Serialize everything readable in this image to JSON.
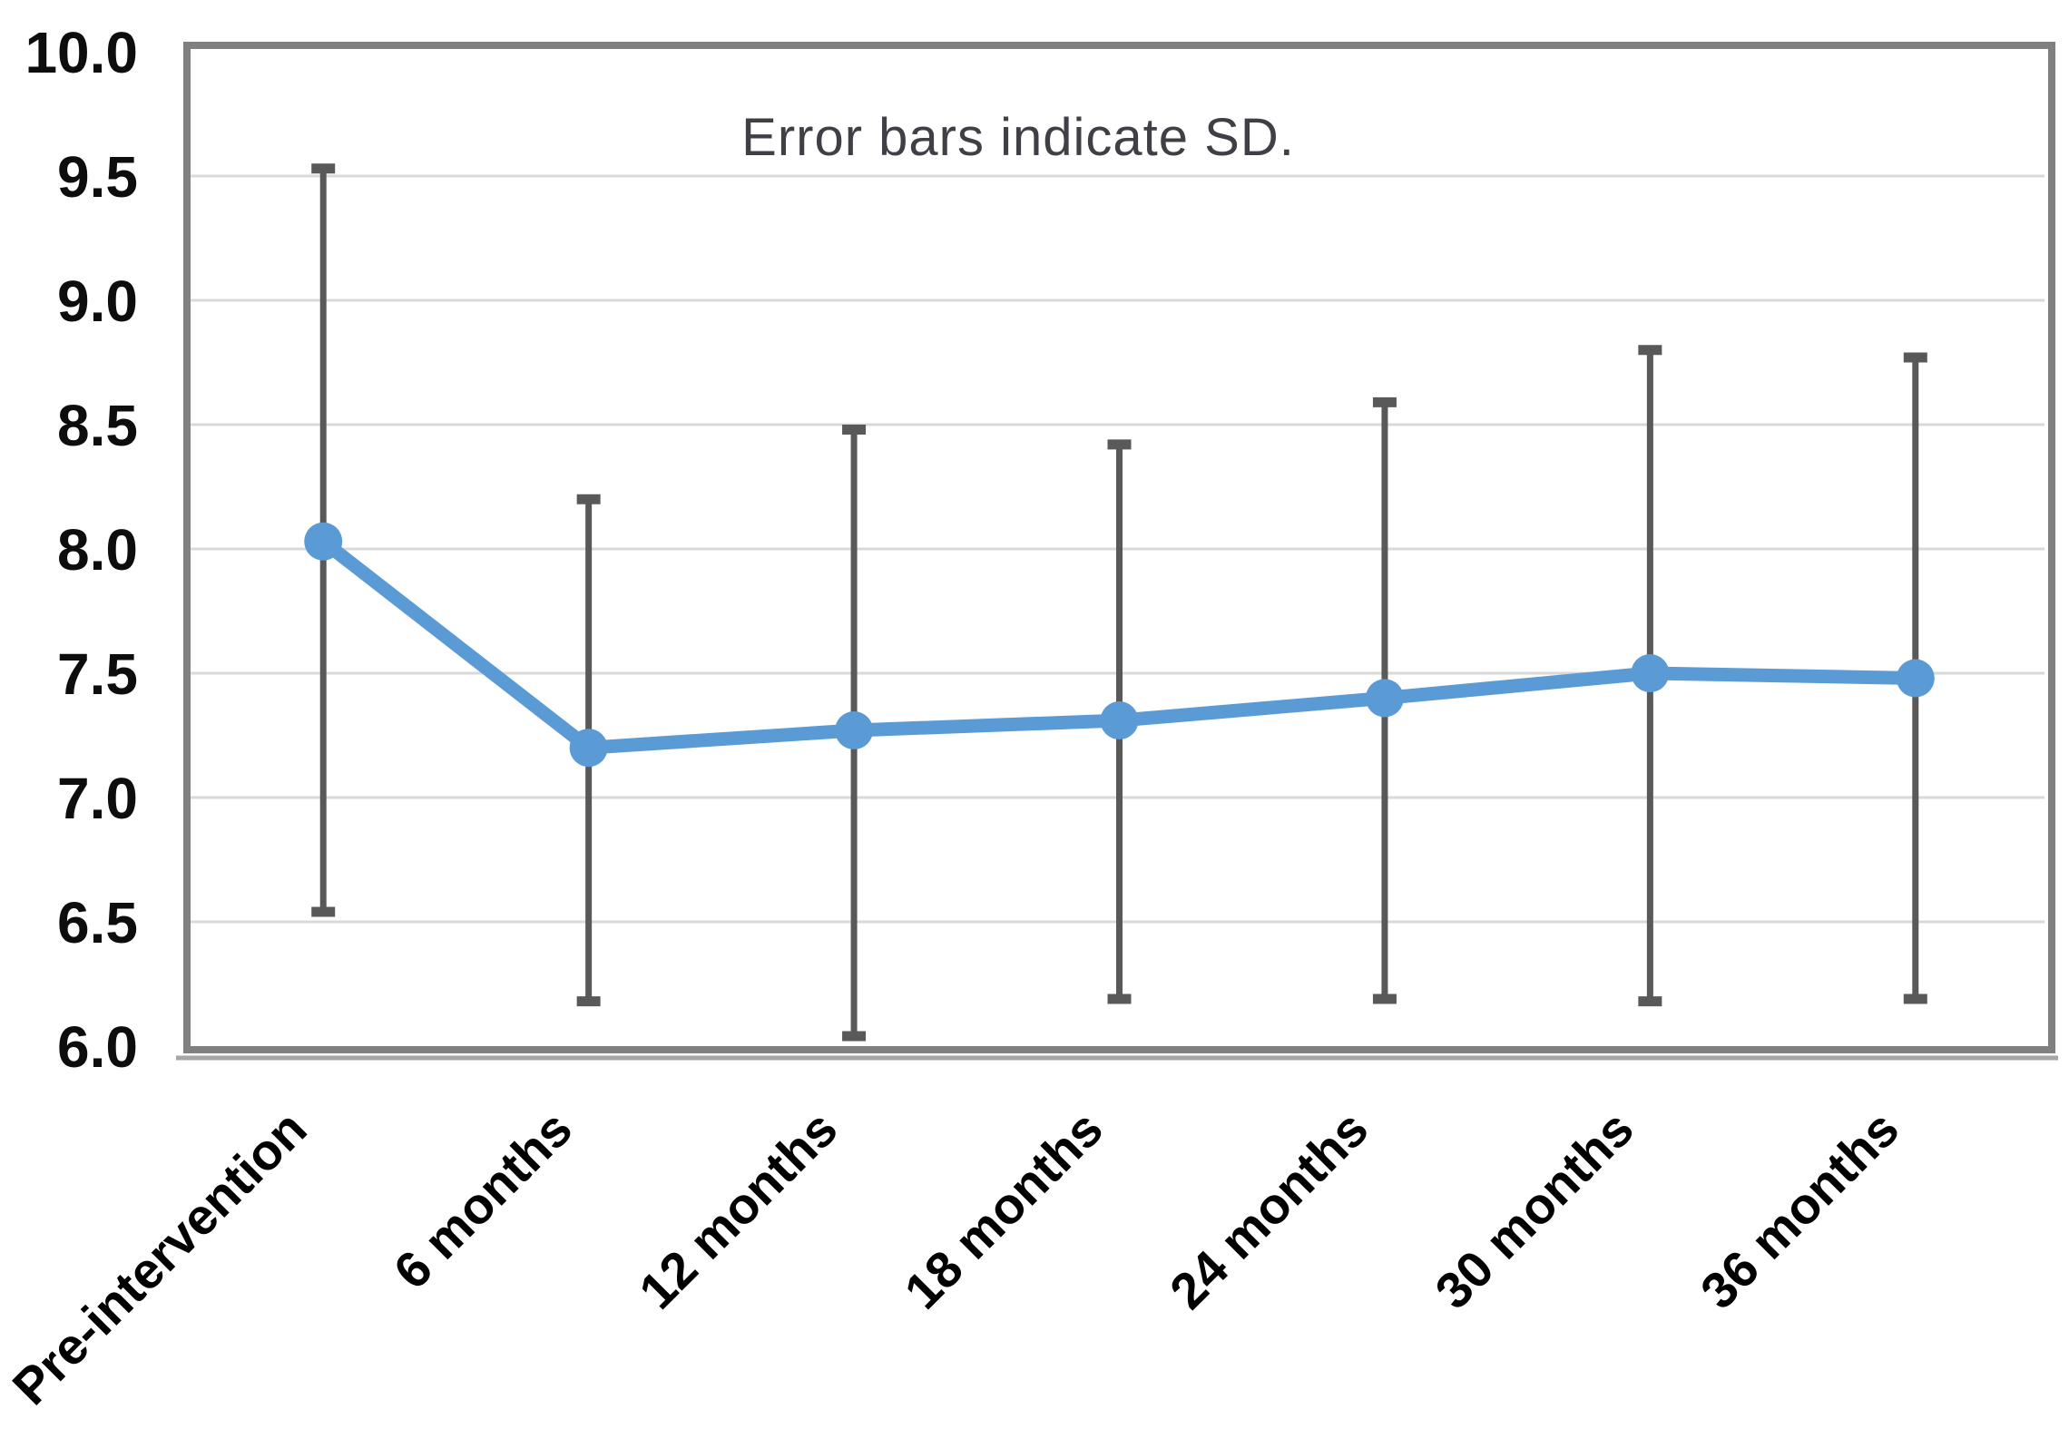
{
  "chart_data": {
    "type": "line",
    "categories": [
      "Pre-intervention",
      "6 months",
      "12 months",
      "18 months",
      "24 months",
      "30 months",
      "36 months"
    ],
    "series": [
      {
        "name": "mean",
        "values": [
          8.03,
          7.2,
          7.27,
          7.31,
          7.4,
          7.5,
          7.48
        ]
      }
    ],
    "error_upper": [
      9.53,
      8.2,
      8.48,
      8.42,
      8.59,
      8.8,
      8.77
    ],
    "error_lower": [
      6.54,
      6.18,
      6.04,
      6.19,
      6.19,
      6.18,
      6.19
    ],
    "annotation": "Error bars indicate SD.",
    "title": "",
    "xlabel": "",
    "ylabel": "",
    "ylim": [
      6.0,
      10.0
    ],
    "y_tick_step": 0.5,
    "y_tick_labels": [
      "10.0",
      "9.5",
      "9.0",
      "8.5",
      "8.0",
      "7.5",
      "7.0",
      "6.5",
      "6.0"
    ],
    "grid": "horizontal",
    "legend": "none",
    "marker": "circle",
    "colors": {
      "line": "#5B9BD5",
      "marker": "#5B9BD5",
      "error_bar": "#595959",
      "gridline": "#D9D9D9",
      "plot_border": "#808080",
      "axis_line": "#A6A6A6",
      "y_tick_label": "#0D0D0D",
      "x_category_label": "#000000",
      "annotation": "#3F3F46",
      "background": "#FFFFFF"
    }
  }
}
